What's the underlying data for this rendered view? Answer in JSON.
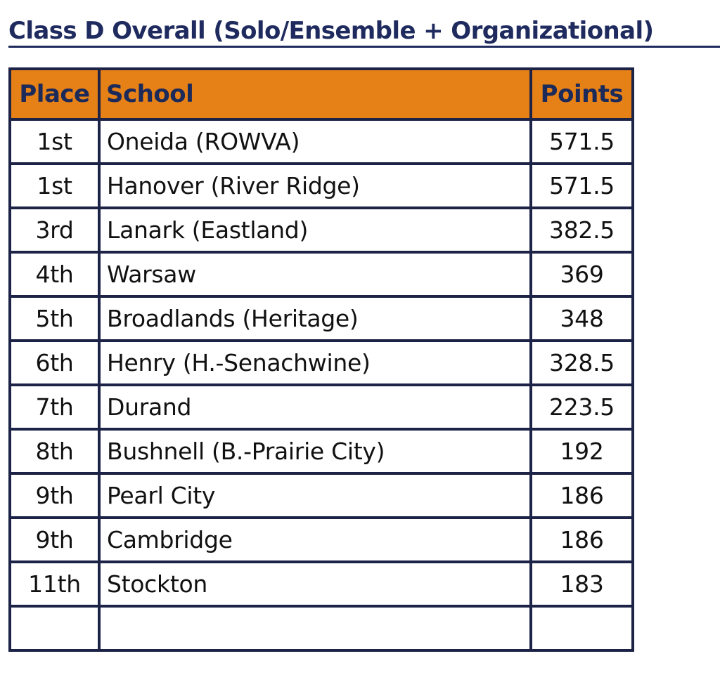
{
  "title": "Class D Overall (Solo/Ensemble + Organizational)",
  "colors": {
    "title": "#1f2b5e",
    "header_bg": "#e58117",
    "header_text": "#1c2a5a",
    "border": "#1c2346"
  },
  "table": {
    "headers": {
      "place": "Place",
      "school": "School",
      "points": "Points"
    },
    "rows": [
      {
        "place": "1st",
        "school": "Oneida (ROWVA)",
        "points": "571.5"
      },
      {
        "place": "1st",
        "school": "Hanover (River Ridge)",
        "points": "571.5"
      },
      {
        "place": "3rd",
        "school": "Lanark (Eastland)",
        "points": "382.5"
      },
      {
        "place": "4th",
        "school": "Warsaw",
        "points": "369"
      },
      {
        "place": "5th",
        "school": "Broadlands (Heritage)",
        "points": "348"
      },
      {
        "place": "6th",
        "school": "Henry (H.-Senachwine)",
        "points": "328.5"
      },
      {
        "place": "7th",
        "school": "Durand",
        "points": "223.5"
      },
      {
        "place": "8th",
        "school": "Bushnell (B.-Prairie City)",
        "points": "192"
      },
      {
        "place": "9th",
        "school": "Pearl City",
        "points": "186"
      },
      {
        "place": "9th",
        "school": "Cambridge",
        "points": "186"
      },
      {
        "place": "11th",
        "school": "Stockton",
        "points": "183"
      },
      {
        "place": "",
        "school": "",
        "points": ""
      }
    ]
  }
}
